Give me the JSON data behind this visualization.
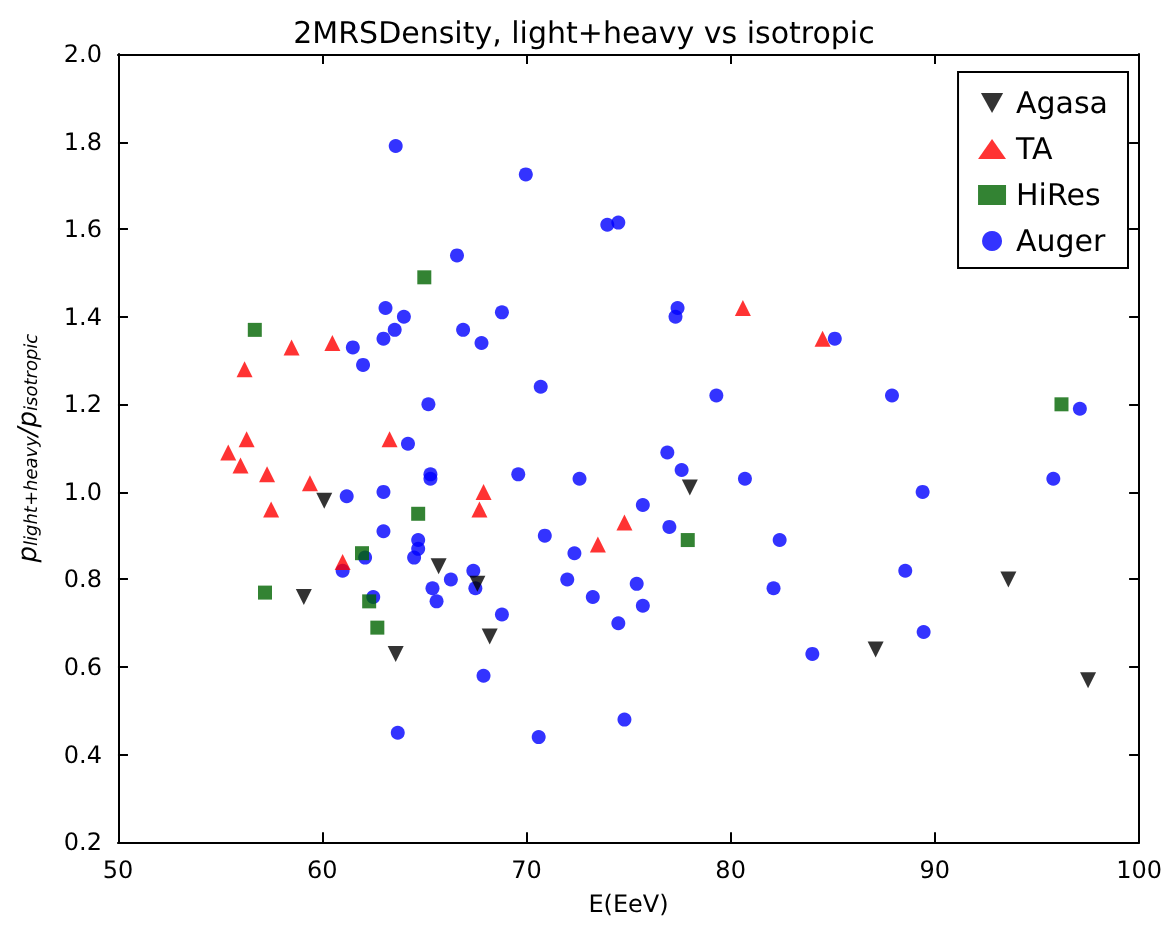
{
  "chart_data": {
    "type": "scatter",
    "title": "2MRSDensity, light+heavy vs isotropic",
    "xlabel": "E(EeV)",
    "ylabel": "p$_{light+heavy}$/p$_{isotropic}$",
    "xlim": [
      50,
      100
    ],
    "xticks": [
      50,
      60,
      70,
      80,
      90,
      100
    ],
    "ylim": [
      0.2,
      2.0
    ],
    "yticks": [
      {
        "value": 0.2,
        "label": "0.2"
      },
      {
        "value": 0.4,
        "label": "0.4"
      },
      {
        "value": 0.6,
        "label": "0.6"
      },
      {
        "value": 0.8,
        "label": "0.8"
      },
      {
        "value": 1.0,
        "label": "1.0"
      },
      {
        "value": 1.2,
        "label": "1.2"
      },
      {
        "value": 1.4,
        "label": "1.4"
      },
      {
        "value": 1.6,
        "label": "1.6"
      },
      {
        "value": 1.8,
        "label": "1.8"
      },
      {
        "value": 2.0,
        "label": "2.0"
      }
    ],
    "grid": false,
    "legend": "top right",
    "series": [
      {
        "name": "Agasa",
        "color": "#000000",
        "marker": "triangle_down",
        "x": [
          60.1,
          59.1,
          65.7,
          67.6,
          68.2,
          63.6,
          78.0,
          87.1,
          93.6,
          97.5
        ],
        "values": [
          0.98,
          0.76,
          0.83,
          0.79,
          0.67,
          0.63,
          1.01,
          0.64,
          0.8,
          0.57
        ]
      },
      {
        "name": "TA",
        "color": "#ff0000",
        "marker": "triangle",
        "x": [
          58.5,
          60.5,
          56.2,
          56.3,
          55.4,
          63.3,
          56.0,
          57.3,
          57.5,
          59.4,
          67.9,
          67.7,
          61.0,
          73.5,
          74.8,
          80.6,
          84.5
        ],
        "values": [
          1.33,
          1.34,
          1.28,
          1.12,
          1.09,
          1.12,
          1.06,
          1.04,
          0.96,
          1.02,
          1.0,
          0.96,
          0.84,
          0.88,
          0.93,
          1.42,
          1.35
        ]
      },
      {
        "name": "HiRes",
        "color": "#006400",
        "marker": "square",
        "x": [
          56.7,
          65.0,
          57.2,
          61.95,
          62.3,
          62.7,
          64.7,
          77.9,
          96.2
        ],
        "values": [
          1.37,
          1.49,
          0.77,
          0.86,
          0.75,
          0.69,
          0.95,
          0.89,
          1.2
        ]
      },
      {
        "name": "Auger",
        "color": "#0000ff",
        "marker": "circle",
        "x": [
          63.6,
          69.97,
          73.96,
          74.5,
          66.6,
          63.1,
          64.0,
          63.55,
          66.9,
          68.8,
          61.5,
          63.0,
          67.8,
          62.0,
          70.7,
          65.2,
          64.2,
          77.4,
          77.3,
          79.3,
          85.1,
          87.9,
          97.1,
          76.9,
          61.2,
          63.0,
          65.3,
          65.3,
          69.6,
          72.6,
          63.0,
          64.7,
          64.7,
          64.5,
          70.9,
          72.35,
          61.0,
          62.1,
          62.5,
          65.4,
          65.6,
          66.3,
          67.4,
          67.5,
          68.8,
          72.0,
          73.25,
          74.5,
          67.9,
          63.7,
          70.6,
          74.8,
          77.6,
          80.7,
          89.4,
          95.8,
          75.7,
          77.0,
          82.4,
          88.55,
          75.4,
          75.7,
          82.1,
          84.0,
          89.45
        ],
        "values": [
          1.79,
          1.725,
          1.61,
          1.615,
          1.54,
          1.42,
          1.4,
          1.37,
          1.37,
          1.41,
          1.33,
          1.35,
          1.34,
          1.29,
          1.24,
          1.2,
          1.11,
          1.42,
          1.4,
          1.22,
          1.35,
          1.22,
          1.19,
          1.09,
          0.99,
          1.0,
          1.04,
          1.03,
          1.04,
          1.03,
          0.91,
          0.89,
          0.87,
          0.85,
          0.9,
          0.86,
          0.82,
          0.85,
          0.76,
          0.78,
          0.75,
          0.8,
          0.82,
          0.78,
          0.72,
          0.8,
          0.76,
          0.7,
          0.58,
          0.45,
          0.44,
          0.48,
          1.05,
          1.03,
          1.0,
          1.03,
          0.97,
          0.92,
          0.89,
          0.82,
          0.79,
          0.74,
          0.78,
          0.63,
          0.68
        ]
      }
    ]
  }
}
